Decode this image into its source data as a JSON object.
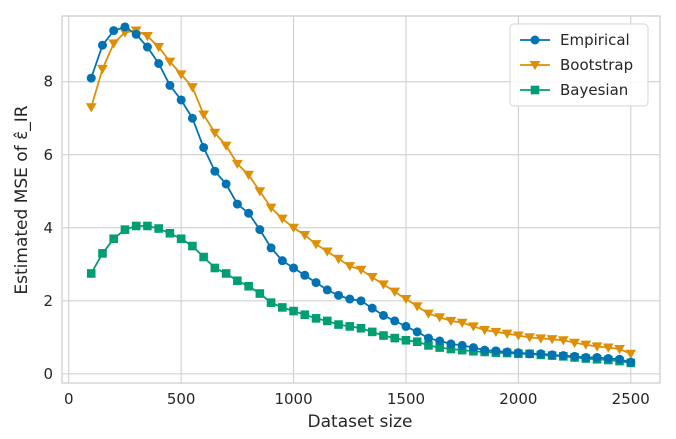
{
  "chart_data": {
    "type": "line",
    "xlabel": "Dataset size",
    "ylabel": "Estimated MSE of ε̂_IR",
    "xlim": [
      -30,
      2630
    ],
    "ylim": [
      -0.25,
      9.8
    ],
    "xticks": [
      0,
      500,
      1000,
      1500,
      2000,
      2500
    ],
    "yticks": [
      0,
      2,
      4,
      6,
      8
    ],
    "grid": true,
    "legend_position": "top-right",
    "x": [
      100,
      150,
      200,
      250,
      300,
      350,
      400,
      450,
      500,
      550,
      600,
      650,
      700,
      750,
      800,
      850,
      900,
      950,
      1000,
      1050,
      1100,
      1150,
      1200,
      1250,
      1300,
      1350,
      1400,
      1450,
      1500,
      1550,
      1600,
      1650,
      1700,
      1750,
      1800,
      1850,
      1900,
      1950,
      2000,
      2050,
      2100,
      2150,
      2200,
      2250,
      2300,
      2350,
      2400,
      2450,
      2500
    ],
    "series": [
      {
        "name": "Empirical",
        "color": "#0173b2",
        "marker": "circle",
        "values": [
          8.1,
          9.0,
          9.4,
          9.5,
          9.3,
          8.95,
          8.5,
          7.9,
          7.5,
          7.0,
          6.2,
          5.55,
          5.2,
          4.65,
          4.4,
          3.95,
          3.45,
          3.1,
          2.9,
          2.7,
          2.5,
          2.3,
          2.15,
          2.05,
          2.0,
          1.8,
          1.6,
          1.45,
          1.3,
          1.15,
          0.98,
          0.9,
          0.82,
          0.78,
          0.72,
          0.65,
          0.63,
          0.6,
          0.58,
          0.55,
          0.55,
          0.52,
          0.5,
          0.48,
          0.45,
          0.45,
          0.42,
          0.4,
          0.32
        ]
      },
      {
        "name": "Bootstrap",
        "color": "#de8f05",
        "marker": "triangle-down",
        "values": [
          7.3,
          8.35,
          9.05,
          9.35,
          9.4,
          9.25,
          8.95,
          8.55,
          8.2,
          7.85,
          7.1,
          6.6,
          6.25,
          5.75,
          5.45,
          5.0,
          4.55,
          4.25,
          4.0,
          3.8,
          3.55,
          3.35,
          3.15,
          2.95,
          2.85,
          2.65,
          2.45,
          2.25,
          2.05,
          1.85,
          1.65,
          1.55,
          1.45,
          1.4,
          1.3,
          1.2,
          1.15,
          1.1,
          1.05,
          1.0,
          0.97,
          0.95,
          0.92,
          0.85,
          0.8,
          0.75,
          0.72,
          0.68,
          0.55
        ]
      },
      {
        "name": "Bayesian",
        "color": "#029e73",
        "marker": "square",
        "values": [
          2.75,
          3.3,
          3.7,
          3.95,
          4.05,
          4.05,
          3.98,
          3.85,
          3.7,
          3.5,
          3.2,
          2.9,
          2.75,
          2.55,
          2.4,
          2.2,
          1.95,
          1.82,
          1.72,
          1.62,
          1.52,
          1.45,
          1.35,
          1.3,
          1.25,
          1.15,
          1.05,
          0.98,
          0.92,
          0.88,
          0.78,
          0.72,
          0.68,
          0.65,
          0.62,
          0.6,
          0.58,
          0.57,
          0.55,
          0.55,
          0.52,
          0.5,
          0.48,
          0.45,
          0.42,
          0.4,
          0.38,
          0.35,
          0.3
        ]
      }
    ]
  }
}
